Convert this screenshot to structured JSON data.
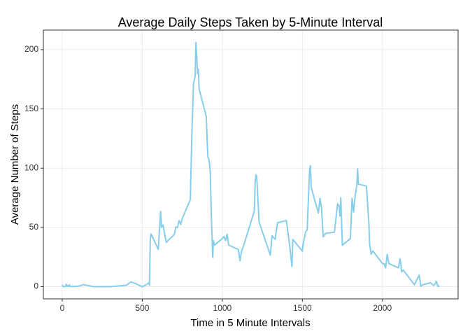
{
  "chart_data": {
    "type": "line",
    "title": "Average Daily Steps Taken by 5-Minute Interval",
    "x_label": "Time in 5 Minute Intervals",
    "y_label": "Average Number of Steps",
    "x": [
      0,
      5,
      10,
      15,
      20,
      25,
      30,
      35,
      40,
      45,
      50,
      55,
      100,
      130,
      200,
      300,
      400,
      430,
      440,
      450,
      500,
      530,
      540,
      545,
      550,
      555,
      600,
      610,
      615,
      620,
      630,
      640,
      650,
      700,
      710,
      720,
      730,
      740,
      750,
      800,
      810,
      820,
      830,
      835,
      840,
      845,
      850,
      855,
      900,
      905,
      910,
      915,
      920,
      925,
      930,
      935,
      940,
      945,
      950,
      1000,
      1010,
      1020,
      1030,
      1040,
      1100,
      1110,
      1120,
      1130,
      1200,
      1205,
      1210,
      1215,
      1230,
      1300,
      1310,
      1330,
      1345,
      1400,
      1420,
      1435,
      1440,
      1500,
      1505,
      1520,
      1530,
      1545,
      1550,
      1555,
      1600,
      1610,
      1620,
      1630,
      1645,
      1700,
      1720,
      1730,
      1735,
      1740,
      1750,
      1800,
      1810,
      1820,
      1830,
      1840,
      1845,
      1850,
      1900,
      1915,
      1920,
      1930,
      1940,
      2000,
      2010,
      2020,
      2030,
      2040,
      2100,
      2110,
      2115,
      2120,
      2130,
      2200,
      2210,
      2230,
      2240,
      2250,
      2300,
      2320,
      2330,
      2335,
      2340,
      2345,
      2350,
      2355
    ],
    "series": [
      {
        "name": "Average Number of Steps",
        "color": "#87ceeb",
        "values": [
          1.7,
          0.3,
          0.1,
          0.2,
          0.1,
          2.1,
          0.5,
          0.9,
          0,
          1.5,
          0.3,
          0.1,
          0.3,
          1.8,
          0,
          0,
          1.2,
          4.1,
          3.5,
          3.1,
          0,
          2.1,
          3.2,
          1.5,
          39.5,
          44.5,
          31.5,
          53.8,
          63.5,
          50,
          52.1,
          44,
          37.4,
          44,
          50.5,
          49.9,
          55.7,
          52.5,
          57.6,
          73.4,
          129.4,
          171.2,
          177.3,
          206.2,
          195.9,
          179.6,
          183.4,
          167,
          143.5,
          124,
          109.1,
          108.1,
          103.7,
          95.9,
          66.2,
          45.2,
          24.8,
          38.8,
          35,
          40.6,
          42.4,
          38.9,
          44.3,
          35.1,
          31.4,
          21.9,
          30,
          33.4,
          63.9,
          87.6,
          94.6,
          92.8,
          54.5,
          26.6,
          43,
          40,
          54,
          55.8,
          35.5,
          17,
          40,
          30,
          36,
          46,
          48,
          98.7,
          102.1,
          83.9,
          62.1,
          74.5,
          66,
          42,
          45,
          46,
          70,
          68,
          59.7,
          75.1,
          35,
          40.7,
          74.7,
          63,
          77.4,
          85.3,
          99.5,
          86.6,
          84.9,
          54.7,
          36.1,
          27.4,
          30.2,
          19.6,
          19.3,
          16,
          27.3,
          19.5,
          15.9,
          23.5,
          19.2,
          12.5,
          14.1,
          1.6,
          4.6,
          9.8,
          0.3,
          1.6,
          3.3,
          1,
          2.6,
          4.7,
          3.3,
          0.6,
          0.2,
          1.1
        ]
      }
    ],
    "xlim": [
      -117.75,
      2472.75
    ],
    "ylim": [
      -10.3,
      216.5
    ],
    "xticks": [
      0,
      500,
      1000,
      1500,
      2000
    ],
    "yticks": [
      0,
      50,
      100,
      150,
      200
    ],
    "grid": true
  }
}
